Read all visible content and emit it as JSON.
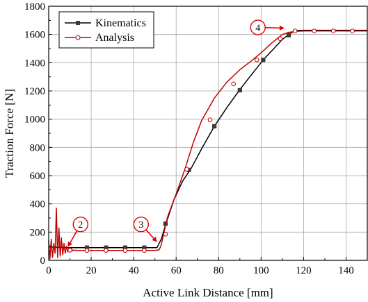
{
  "chart_data": {
    "type": "line",
    "title": "",
    "xlabel": "Active Link Distance [mm]",
    "ylabel": "Traction Force [N]",
    "xlim": [
      0,
      150
    ],
    "ylim": [
      0,
      1800
    ],
    "xticks": [
      0,
      20,
      40,
      60,
      80,
      100,
      120,
      140
    ],
    "yticks": [
      0,
      200,
      400,
      600,
      800,
      1000,
      1200,
      1400,
      1600,
      1800
    ],
    "grid": true,
    "legend_position": "top-left",
    "series": [
      {
        "name": "Kinematics",
        "color": "#000000",
        "marker": "filled-square",
        "x": [
          0,
          5,
          9,
          18,
          27,
          36,
          45,
          51,
          53,
          55,
          59,
          63,
          67,
          72,
          78,
          84,
          90,
          96,
          101,
          106,
          110,
          113,
          116,
          120,
          130,
          140,
          150
        ],
        "y": [
          95,
          92,
          90,
          90,
          90,
          90,
          90,
          90,
          150,
          250,
          430,
          560,
          650,
          790,
          950,
          1085,
          1210,
          1325,
          1420,
          1500,
          1565,
          1600,
          1628,
          1630,
          1630,
          1630,
          1630
        ],
        "marker_points": {
          "x": [
            18,
            27,
            36,
            45,
            55,
            66,
            78,
            90,
            101,
            113
          ],
          "y": [
            90,
            90,
            90,
            90,
            260,
            640,
            950,
            1205,
            1420,
            1595
          ]
        }
      },
      {
        "name": "Analysis",
        "color": "#c00000",
        "marker": "open-circle",
        "x": [
          0,
          0.6,
          1.2,
          1.8,
          2.4,
          3,
          3.6,
          4.2,
          4.8,
          5.4,
          6,
          6.6,
          7.2,
          7.8,
          8.4,
          9,
          9.6,
          10.2,
          10.8,
          11.4,
          12,
          14,
          16,
          20,
          30,
          40,
          50,
          52,
          53,
          54,
          56,
          60,
          64,
          68,
          72,
          78,
          84,
          90,
          96,
          100,
          105,
          110,
          113,
          116,
          120,
          130,
          140,
          150
        ],
        "y": [
          140,
          10,
          150,
          20,
          120,
          50,
          370,
          20,
          230,
          30,
          160,
          40,
          120,
          50,
          100,
          60,
          90,
          65,
          80,
          68,
          72,
          70,
          70,
          70,
          70,
          70,
          70,
          75,
          110,
          180,
          310,
          470,
          640,
          830,
          990,
          1150,
          1265,
          1350,
          1420,
          1470,
          1540,
          1600,
          1615,
          1622,
          1625,
          1625,
          1625,
          1625
        ],
        "marker_points": {
          "x": [
            10,
            18,
            27,
            36,
            45,
            55,
            65,
            76,
            87,
            98,
            109,
            116,
            125,
            134,
            143
          ],
          "y": [
            72,
            70,
            70,
            70,
            70,
            185,
            645,
            995,
            1250,
            1420,
            1570,
            1625,
            1625,
            1625,
            1625
          ]
        }
      }
    ],
    "annotations": [
      {
        "label": "2",
        "x": 15,
        "y": 255,
        "arrow_to": [
          9,
          95
        ]
      },
      {
        "label": "3",
        "x": 43.5,
        "y": 255,
        "arrow_to": [
          51,
          130
        ]
      },
      {
        "label": "4",
        "x": 98.5,
        "y": 1650,
        "arrow_to": [
          111,
          1645
        ]
      }
    ]
  }
}
